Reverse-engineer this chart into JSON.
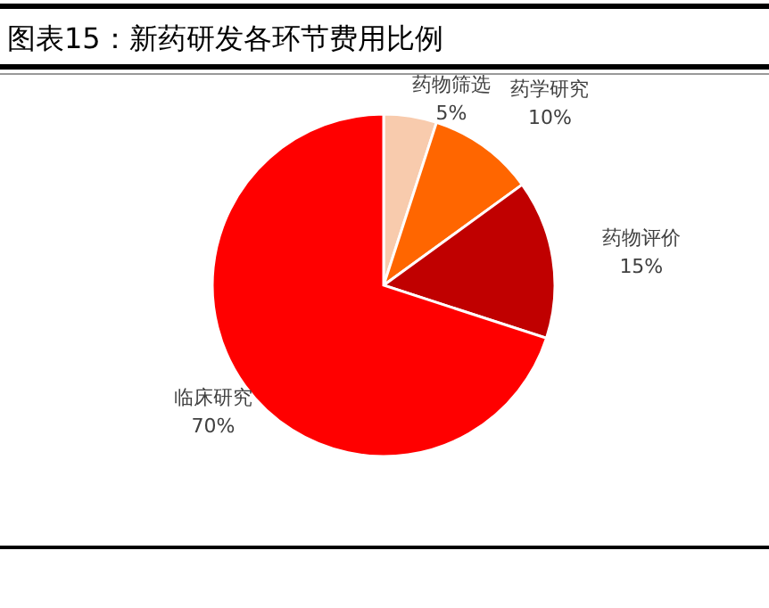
{
  "chart_data": {
    "type": "pie",
    "title": "图表15：新药研发各环节费用比例",
    "categories": [
      "药物筛选",
      "药学研究",
      "药物评价",
      "临床研究"
    ],
    "values": [
      5,
      10,
      15,
      70
    ],
    "value_labels": [
      "5%",
      "10%",
      "15%",
      "70%"
    ],
    "colors": [
      "#f8cbad",
      "#ff6600",
      "#c00000",
      "#ff0000"
    ]
  }
}
